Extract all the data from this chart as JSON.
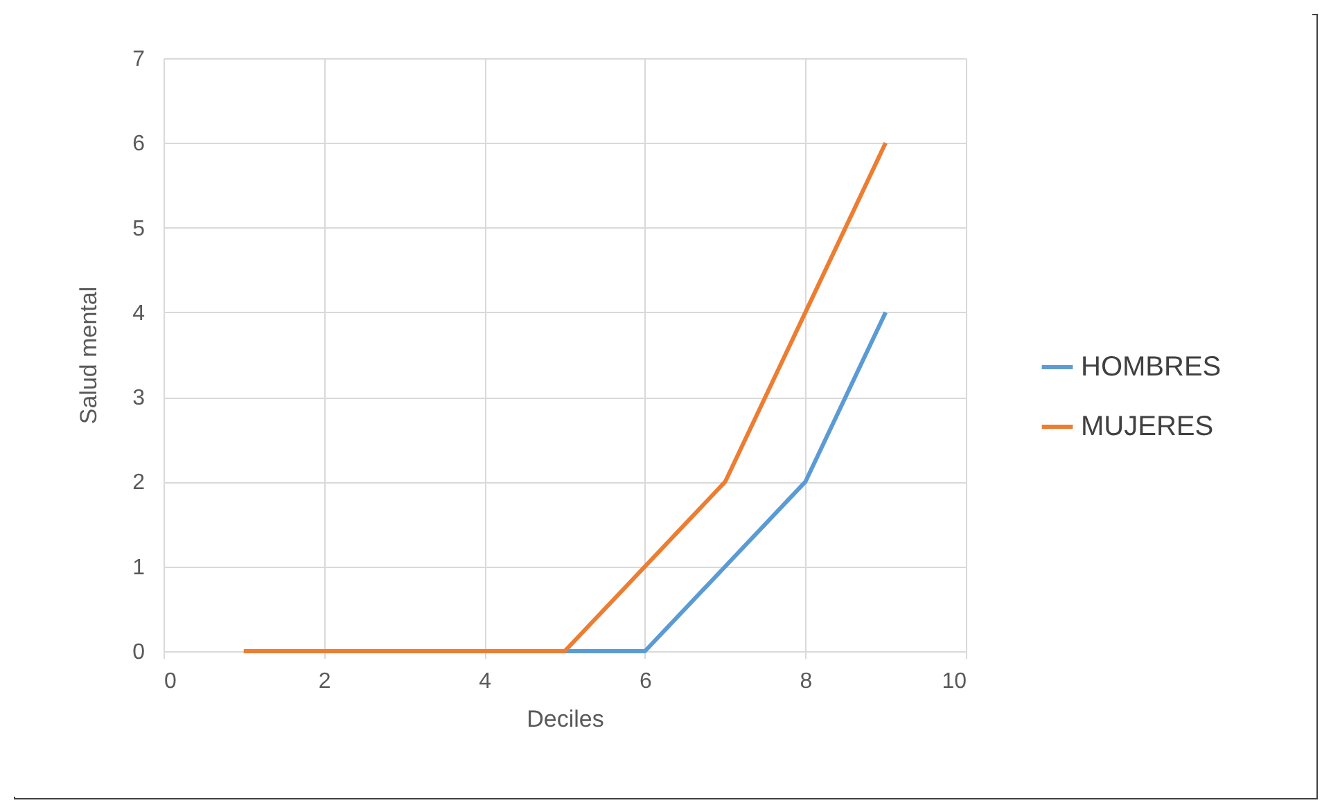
{
  "chart_data": {
    "type": "line",
    "xlabel": "Deciles",
    "ylabel": "Salud mental",
    "x": [
      1,
      2,
      3,
      4,
      5,
      6,
      7,
      8,
      9
    ],
    "series": [
      {
        "name": "HOMBRES",
        "color": "#5b9bd5",
        "values": [
          null,
          null,
          null,
          null,
          0,
          0,
          1,
          2,
          4
        ]
      },
      {
        "name": "MUJERES",
        "color": "#ed7d31",
        "values": [
          0,
          0,
          0,
          0,
          0,
          1,
          2,
          4,
          6
        ]
      }
    ],
    "xlim": [
      0,
      10
    ],
    "xticks": [
      0,
      2,
      4,
      6,
      8,
      10
    ],
    "ylim": [
      0,
      7
    ],
    "yticks": [
      0,
      1,
      2,
      3,
      4,
      5,
      6,
      7
    ],
    "grid": true,
    "legend": "right"
  }
}
